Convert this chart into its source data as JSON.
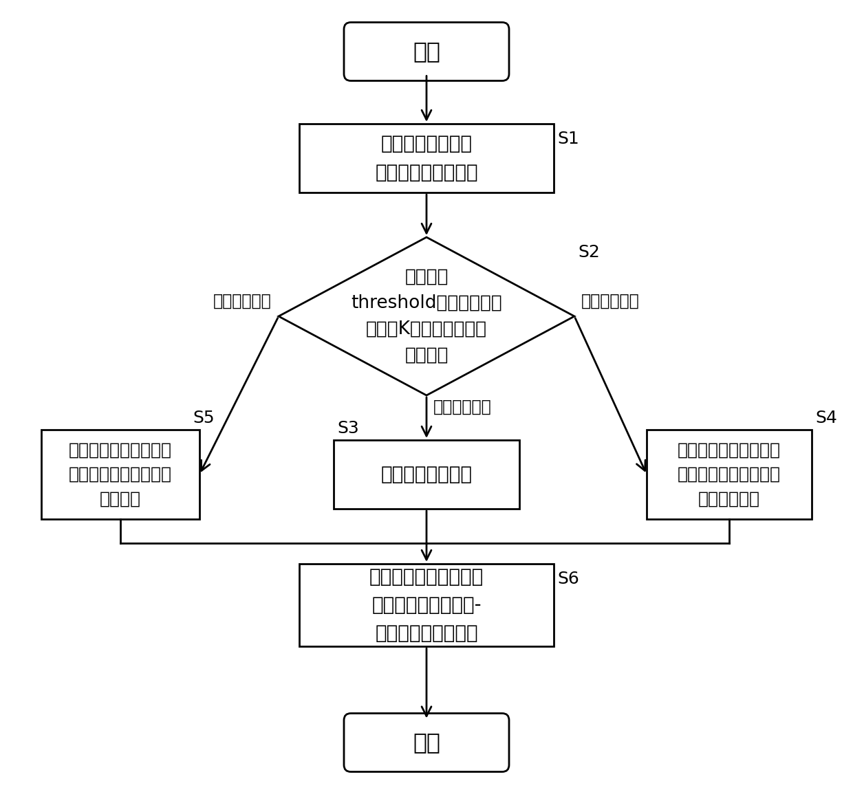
{
  "bg_color": "#ffffff",
  "line_color": "#000000",
  "text_color": "#000000",
  "start_text": "开始",
  "end_text": "结束",
  "s1_text": "获取永磁同步电机\n的实时期望输出频率",
  "s2_text": "判断阈值\nthreshold是否大于姿势\n特征到K个簇中心的距离\n的最小值",
  "s3_text": "动态调节输出电压",
  "s4_text": "将有源功率因数调节器\n最大的输出电压设置为\n期望输出电压",
  "s5_text": "将有源功率校正的最小\n的输出电压设置为期望\n输出电压",
  "s6_text": "根据期望输出电压更新\n永磁同步电机的电压-\n频率特性的拐点信息",
  "left_label": "低于频率范围",
  "right_label": "高于频率范围",
  "center_label": "在频率范围内",
  "s1_label": "S1",
  "s2_label": "S2",
  "s3_label": "S3",
  "s4_label": "S4",
  "s5_label": "S5",
  "s6_label": "S6"
}
